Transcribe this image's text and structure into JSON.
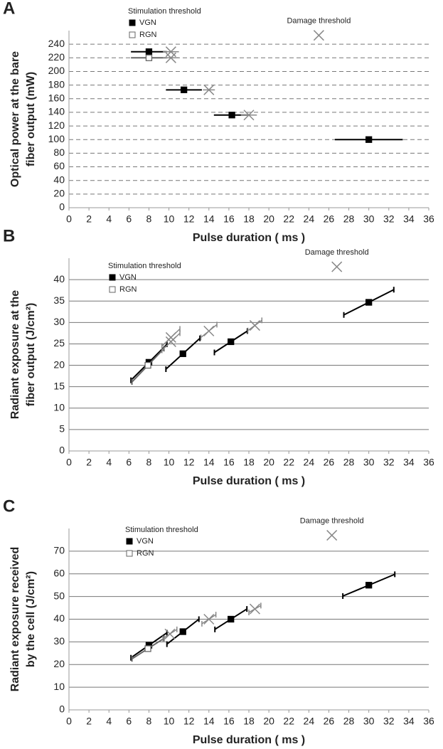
{
  "chart_data": [
    {
      "type": "scatter",
      "panel_label": "A",
      "xlabel": "Pulse duration ( ms )",
      "ylabel": [
        "Optical power at the bare",
        "fiber output (mW)"
      ],
      "legend_title": "Stimulation threshold",
      "grid": true,
      "grid_style": "dashed",
      "xlim": [
        0,
        36
      ],
      "xticks": [
        0,
        2,
        4,
        6,
        8,
        10,
        12,
        14,
        16,
        18,
        20,
        22,
        24,
        26,
        28,
        30,
        32,
        34,
        36
      ],
      "ylim": [
        0,
        260
      ],
      "yticks": [
        0,
        20,
        40,
        60,
        80,
        100,
        120,
        140,
        160,
        180,
        200,
        220,
        240
      ],
      "series": [
        {
          "name": "VGN",
          "color": "#000000",
          "marker": "filled-square",
          "legend": true,
          "x": [
            8,
            11.5,
            16.3,
            30
          ],
          "values": [
            229,
            173,
            136,
            100
          ],
          "xerr": [
            1.8,
            1.8,
            1.8,
            3.4
          ]
        },
        {
          "name": "RGN",
          "color": "#666666",
          "marker": "open-square",
          "legend": true,
          "x": [
            8
          ],
          "values": [
            220
          ],
          "xerr": [
            1.8
          ]
        },
        {
          "name": "Damage threshold",
          "color": "#888888",
          "marker": "x",
          "legend": false,
          "x": [
            10.2,
            10.2,
            14,
            18,
            25
          ],
          "values": [
            229,
            220,
            173,
            136,
            253
          ],
          "xerr": [
            0.8,
            0.8,
            0.6,
            0.8,
            null
          ]
        }
      ]
    },
    {
      "type": "scatter",
      "panel_label": "B",
      "xlabel": "Pulse duration ( ms )",
      "ylabel": [
        "Radiant exposure at the",
        "fiber output (J/cm²)"
      ],
      "legend_title": "Stimulation threshold",
      "grid": true,
      "grid_style": "solid",
      "xlim": [
        0,
        36
      ],
      "xticks": [
        0,
        2,
        4,
        6,
        8,
        10,
        12,
        14,
        16,
        18,
        20,
        22,
        24,
        26,
        28,
        30,
        32,
        34,
        36
      ],
      "ylim": [
        0,
        45
      ],
      "yticks": [
        0,
        5,
        10,
        15,
        20,
        25,
        30,
        35,
        40
      ],
      "series": [
        {
          "name": "VGN",
          "color": "#000000",
          "marker": "filled-square",
          "legend": true,
          "x": [
            8,
            11.4,
            16.2,
            30
          ],
          "values": [
            20.7,
            22.7,
            25.5,
            34.7
          ],
          "xerr": [
            1.8,
            1.7,
            1.65,
            2.5
          ],
          "yerr": [
            4.2,
            3.6,
            2.5,
            2.95
          ]
        },
        {
          "name": "RGN",
          "color": "#666666",
          "marker": "open-square",
          "legend": true,
          "x": [
            7.9
          ],
          "values": [
            20
          ],
          "xerr": [
            1.6
          ],
          "yerr": [
            3.9
          ]
        },
        {
          "name": "Damage threshold",
          "color": "#888888",
          "marker": "x",
          "legend": false,
          "x": [
            10.2,
            10.2,
            14,
            18.6,
            26.8
          ],
          "values": [
            26.5,
            25.5,
            28,
            29.3,
            43
          ],
          "xerr": [
            0.9,
            0.9,
            0.8,
            0.7,
            null
          ],
          "yerr": [
            2,
            2,
            1.5,
            1.2,
            null
          ]
        }
      ]
    },
    {
      "type": "scatter",
      "panel_label": "C",
      "xlabel": "Pulse duration ( ms )",
      "ylabel": [
        "Radiant exposure received",
        "by the cell (J/cm²)"
      ],
      "legend_title": "Stimulation threshold",
      "grid": true,
      "grid_style": "solid",
      "xlim": [
        0,
        36
      ],
      "xticks": [
        0,
        2,
        4,
        6,
        8,
        10,
        12,
        14,
        16,
        18,
        20,
        22,
        24,
        26,
        28,
        30,
        32,
        34,
        36
      ],
      "ylim": [
        0,
        80
      ],
      "yticks": [
        0,
        10,
        20,
        30,
        40,
        50,
        60,
        70
      ],
      "series": [
        {
          "name": "VGN",
          "color": "#000000",
          "marker": "filled-square",
          "legend": true,
          "x": [
            8,
            11.4,
            16.2,
            30
          ],
          "values": [
            28.5,
            34.5,
            40,
            55
          ],
          "xerr": [
            1.8,
            1.6,
            1.6,
            2.6
          ],
          "yerr": [
            5.5,
            5.5,
            4.5,
            4.8
          ]
        },
        {
          "name": "RGN",
          "color": "#666666",
          "marker": "open-square",
          "legend": true,
          "x": [
            7.9
          ],
          "values": [
            27
          ],
          "xerr": [
            1.6
          ],
          "yerr": [
            4.5
          ]
        },
        {
          "name": "Damage threshold",
          "color": "#888888",
          "marker": "x",
          "legend": false,
          "x": [
            10.1,
            14,
            18.6,
            26.3
          ],
          "values": [
            33.5,
            40,
            44.5,
            77
          ],
          "xerr": [
            0.7,
            0.7,
            0.6,
            null
          ],
          "yerr": [
            2,
            2,
            1.5,
            null
          ]
        }
      ]
    }
  ]
}
